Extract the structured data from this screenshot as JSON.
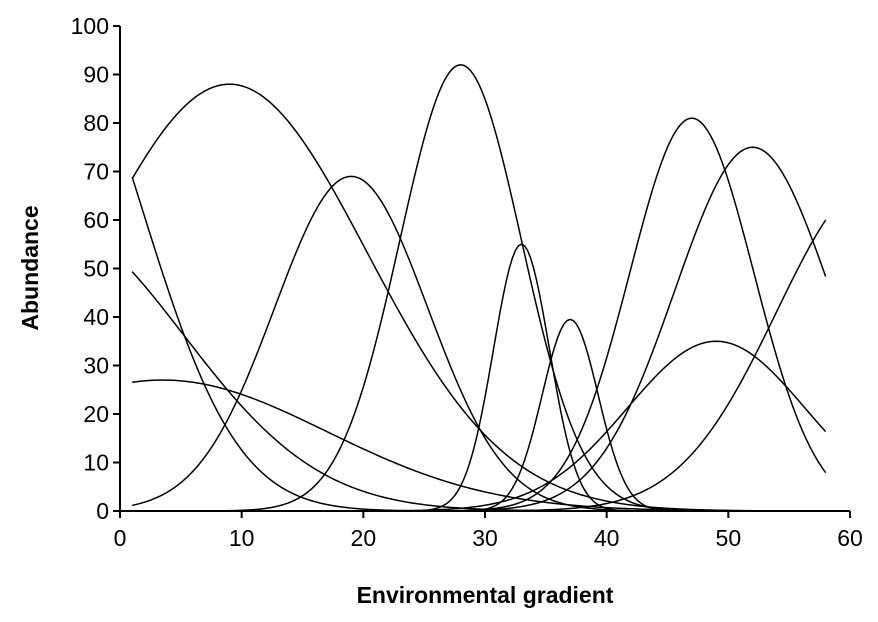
{
  "chart_data": {
    "type": "line",
    "title": "",
    "xlabel": "Environmental gradient",
    "ylabel": "Abundance",
    "xlim": [
      0,
      60
    ],
    "ylim": [
      0,
      100
    ],
    "xticks": [
      0,
      10,
      20,
      30,
      40,
      50,
      60
    ],
    "yticks": [
      0,
      10,
      20,
      30,
      40,
      50,
      60,
      70,
      80,
      90,
      100
    ],
    "grid": false,
    "legend": "none",
    "line_color": "#000000",
    "x_range_of_series": [
      1,
      58
    ],
    "series": [
      {
        "peak_x": 9,
        "peak_y": 88,
        "width": 11.3
      },
      {
        "peak_x": 19,
        "peak_y": 69,
        "width": 6.3
      },
      {
        "peak_x": 28,
        "peak_y": 92,
        "width": 5
      },
      {
        "peak_x": 33,
        "peak_y": 55,
        "width": 2.3
      },
      {
        "peak_x": 37,
        "peak_y": 39.5,
        "width": 2.3
      },
      {
        "peak_x": 47,
        "peak_y": 81,
        "width": 5.1
      },
      {
        "peak_x": 49,
        "peak_y": 35,
        "width": 7.3
      },
      {
        "peak_x": 52,
        "peak_y": 75,
        "width": 6.4
      },
      {
        "peak_x": 62,
        "peak_y": 68,
        "width": 8
      },
      {
        "peak_x": -6,
        "peak_y": 103,
        "width": 7.8
      },
      {
        "peak_x": -6,
        "peak_y": 60,
        "width": 11.2
      },
      {
        "peak_x": 3.5,
        "peak_y": 27,
        "width": 13.5
      }
    ]
  }
}
